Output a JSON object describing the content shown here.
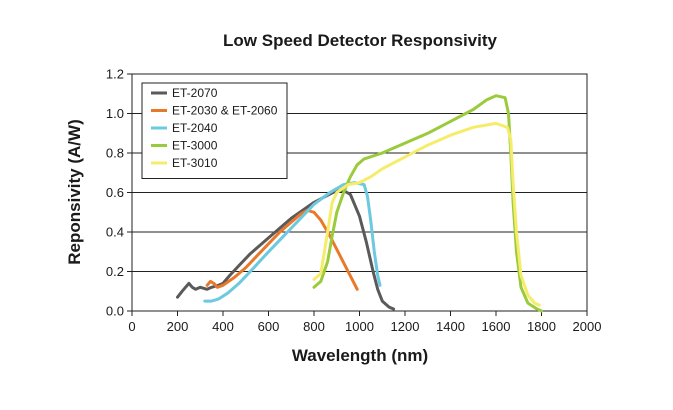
{
  "chart_data": {
    "type": "line",
    "title": "Low Speed Detector Responsivity",
    "xlabel": "Wavelength (nm)",
    "ylabel": "Reponsivity (A/W)",
    "xlim": [
      0,
      2000
    ],
    "ylim": [
      0,
      1.2
    ],
    "xticks": [
      "0",
      "200",
      "400",
      "600",
      "800",
      "1000",
      "1200",
      "1400",
      "1600",
      "1800",
      "2000"
    ],
    "yticks": [
      "0.0",
      "0.2",
      "0.4",
      "0.6",
      "0.8",
      "1.0",
      "1.2"
    ],
    "grid": "horizontal",
    "legend_position": "top-left",
    "series": [
      {
        "name": "ET-2070",
        "color": "#5a5a5a",
        "points": [
          [
            200,
            0.07
          ],
          [
            220,
            0.1
          ],
          [
            250,
            0.14
          ],
          [
            265,
            0.12
          ],
          [
            280,
            0.11
          ],
          [
            300,
            0.12
          ],
          [
            330,
            0.11
          ],
          [
            350,
            0.12
          ],
          [
            380,
            0.13
          ],
          [
            400,
            0.14
          ],
          [
            430,
            0.18
          ],
          [
            470,
            0.23
          ],
          [
            520,
            0.29
          ],
          [
            600,
            0.37
          ],
          [
            700,
            0.47
          ],
          [
            800,
            0.55
          ],
          [
            850,
            0.58
          ],
          [
            900,
            0.61
          ],
          [
            930,
            0.61
          ],
          [
            960,
            0.59
          ],
          [
            1000,
            0.48
          ],
          [
            1030,
            0.35
          ],
          [
            1060,
            0.2
          ],
          [
            1080,
            0.11
          ],
          [
            1100,
            0.05
          ],
          [
            1130,
            0.02
          ],
          [
            1150,
            0.01
          ]
        ]
      },
      {
        "name": "ET-2030 & ET-2060",
        "color": "#e8792b",
        "points": [
          [
            330,
            0.13
          ],
          [
            345,
            0.15
          ],
          [
            360,
            0.14
          ],
          [
            375,
            0.12
          ],
          [
            400,
            0.13
          ],
          [
            450,
            0.17
          ],
          [
            500,
            0.22
          ],
          [
            550,
            0.28
          ],
          [
            600,
            0.34
          ],
          [
            650,
            0.4
          ],
          [
            700,
            0.45
          ],
          [
            740,
            0.49
          ],
          [
            770,
            0.51
          ],
          [
            800,
            0.5
          ],
          [
            830,
            0.46
          ],
          [
            870,
            0.38
          ],
          [
            910,
            0.29
          ],
          [
            950,
            0.2
          ],
          [
            990,
            0.11
          ]
        ]
      },
      {
        "name": "ET-2040",
        "color": "#6dc9e0",
        "points": [
          [
            320,
            0.05
          ],
          [
            350,
            0.05
          ],
          [
            380,
            0.06
          ],
          [
            420,
            0.09
          ],
          [
            470,
            0.14
          ],
          [
            520,
            0.2
          ],
          [
            600,
            0.3
          ],
          [
            700,
            0.42
          ],
          [
            800,
            0.54
          ],
          [
            870,
            0.6
          ],
          [
            930,
            0.64
          ],
          [
            980,
            0.65
          ],
          [
            1020,
            0.64
          ],
          [
            1035,
            0.58
          ],
          [
            1050,
            0.45
          ],
          [
            1065,
            0.3
          ],
          [
            1080,
            0.18
          ],
          [
            1090,
            0.13
          ]
        ]
      },
      {
        "name": "ET-3000",
        "color": "#9bcb3c",
        "points": [
          [
            800,
            0.12
          ],
          [
            830,
            0.15
          ],
          [
            860,
            0.25
          ],
          [
            880,
            0.38
          ],
          [
            900,
            0.5
          ],
          [
            930,
            0.6
          ],
          [
            960,
            0.68
          ],
          [
            990,
            0.74
          ],
          [
            1020,
            0.77
          ],
          [
            1100,
            0.8
          ],
          [
            1200,
            0.85
          ],
          [
            1300,
            0.9
          ],
          [
            1400,
            0.96
          ],
          [
            1500,
            1.02
          ],
          [
            1560,
            1.07
          ],
          [
            1600,
            1.09
          ],
          [
            1640,
            1.08
          ],
          [
            1655,
            1.0
          ],
          [
            1665,
            0.8
          ],
          [
            1675,
            0.55
          ],
          [
            1690,
            0.3
          ],
          [
            1710,
            0.12
          ],
          [
            1740,
            0.04
          ],
          [
            1780,
            0.01
          ],
          [
            1800,
            0.0
          ]
        ]
      },
      {
        "name": "ET-3010",
        "color": "#f5ed6a",
        "points": [
          [
            800,
            0.16
          ],
          [
            830,
            0.19
          ],
          [
            860,
            0.4
          ],
          [
            880,
            0.55
          ],
          [
            900,
            0.6
          ],
          [
            950,
            0.64
          ],
          [
            1000,
            0.65
          ],
          [
            1050,
            0.68
          ],
          [
            1100,
            0.72
          ],
          [
            1200,
            0.78
          ],
          [
            1300,
            0.84
          ],
          [
            1400,
            0.89
          ],
          [
            1500,
            0.93
          ],
          [
            1600,
            0.95
          ],
          [
            1650,
            0.93
          ],
          [
            1665,
            0.87
          ],
          [
            1675,
            0.65
          ],
          [
            1690,
            0.4
          ],
          [
            1710,
            0.18
          ],
          [
            1740,
            0.08
          ],
          [
            1770,
            0.04
          ],
          [
            1790,
            0.03
          ]
        ]
      }
    ]
  }
}
